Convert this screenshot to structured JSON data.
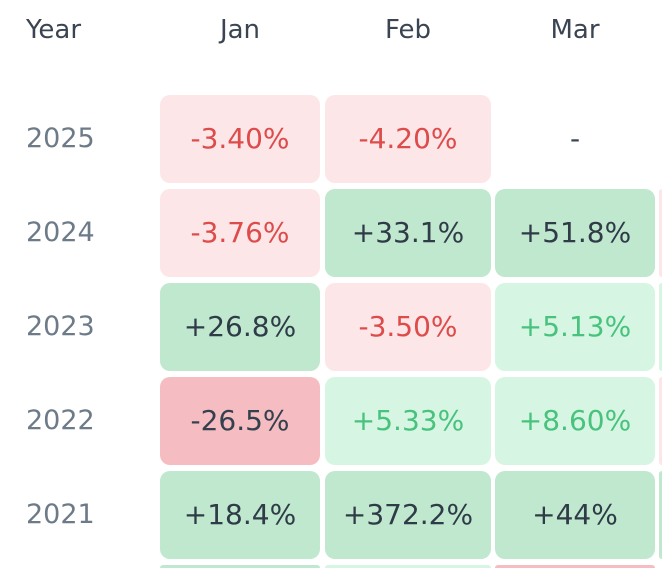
{
  "table": {
    "year_header": "Year",
    "months": [
      "Jan",
      "Feb",
      "Mar"
    ],
    "rows": [
      {
        "year": "2025",
        "cells": [
          {
            "text": "-3.40%",
            "tone": "neg-light"
          },
          {
            "text": "-4.20%",
            "tone": "neg-light"
          },
          {
            "text": "-",
            "tone": "empty"
          }
        ],
        "partial_next_tone": "none"
      },
      {
        "year": "2024",
        "cells": [
          {
            "text": "-3.76%",
            "tone": "neg-light"
          },
          {
            "text": "+33.1%",
            "tone": "pos-strong"
          },
          {
            "text": "+51.8%",
            "tone": "pos-strong"
          }
        ],
        "partial_next_tone": "neg-light"
      },
      {
        "year": "2023",
        "cells": [
          {
            "text": "+26.8%",
            "tone": "pos-strong"
          },
          {
            "text": "-3.50%",
            "tone": "neg-light"
          },
          {
            "text": "+5.13%",
            "tone": "pos-light"
          }
        ],
        "partial_next_tone": "pos-light"
      },
      {
        "year": "2022",
        "cells": [
          {
            "text": "-26.5%",
            "tone": "neg-strong"
          },
          {
            "text": "+5.33%",
            "tone": "pos-light"
          },
          {
            "text": "+8.60%",
            "tone": "pos-light"
          }
        ],
        "partial_next_tone": "neg-light"
      },
      {
        "year": "2021",
        "cells": [
          {
            "text": "+18.4%",
            "tone": "pos-strong"
          },
          {
            "text": "+372.2%",
            "tone": "pos-strong"
          },
          {
            "text": "+44%",
            "tone": "pos-strong"
          }
        ],
        "partial_next_tone": "pos-strong"
      }
    ],
    "partial_bottom_row_tones": [
      "pos-strong",
      "pos-light",
      "neg-strong"
    ]
  },
  "colors": {
    "pos_strong_bg": "#bfe8cf",
    "pos_light_bg": "#d6f6e3",
    "pos_light_text": "#48c27d",
    "neg_strong_bg": "#f5bcc1",
    "neg_light_bg": "#fde6e7",
    "neg_light_text": "#dd4b4b",
    "dark_text": "#2f3b47",
    "year_text": "#6d7a88"
  }
}
